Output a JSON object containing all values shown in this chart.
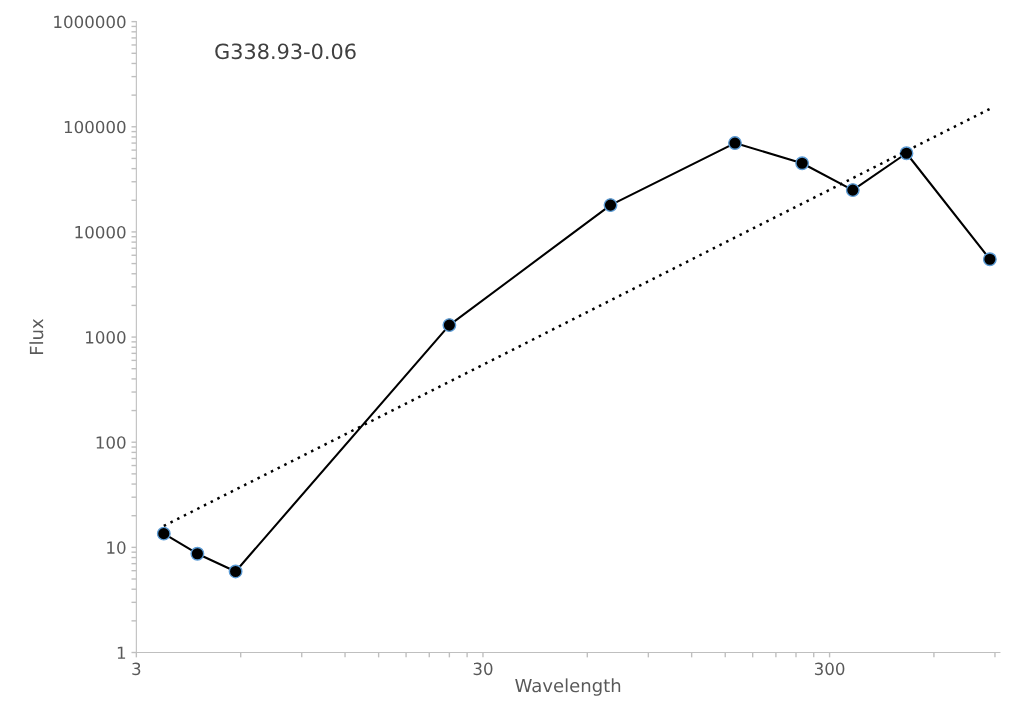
{
  "chart_data": {
    "type": "line",
    "title": "G338.93-0.06",
    "xlabel": "Wavelength",
    "ylabel": "Flux",
    "log": "xy",
    "x": [
      3.6,
      4.5,
      5.8,
      24,
      70,
      160,
      250,
      350,
      500,
      870
    ],
    "series": [
      {
        "color": "#000000",
        "marker": "circle",
        "line_style": "solid",
        "values": [
          13.5,
          8.7,
          5.9,
          1300,
          18000,
          70000,
          45000,
          25000,
          56000,
          5500
        ]
      },
      {
        "color": "#000000",
        "marker": "none",
        "line_style": "dotted",
        "x": [
          3.6,
          870
        ],
        "values": [
          16,
          148000
        ]
      }
    ],
    "xlim": [
      3,
      930
    ],
    "xticks": [
      3,
      {
        "value": 6,
        "label": null
      },
      {
        "value": 9,
        "label": null
      },
      {
        "value": 12,
        "label": null
      },
      {
        "value": 15,
        "label": null
      },
      {
        "value": 18,
        "label": null
      },
      {
        "value": 21,
        "label": null
      },
      {
        "value": 24,
        "label": null
      },
      {
        "value": 27,
        "label": null
      },
      30,
      {
        "value": 60,
        "label": null
      },
      {
        "value": 90,
        "label": null
      },
      {
        "value": 120,
        "label": null
      },
      {
        "value": 150,
        "label": null
      },
      {
        "value": 180,
        "label": null
      },
      {
        "value": 210,
        "label": null
      },
      {
        "value": 240,
        "label": null
      },
      {
        "value": 270,
        "label": null
      },
      300,
      {
        "value": 600,
        "label": null
      },
      {
        "value": 900,
        "label": null
      }
    ],
    "ylim": [
      1,
      1000000
    ],
    "yticks": [
      1,
      {
        "value": 2,
        "label": null
      },
      {
        "value": 3,
        "label": null
      },
      {
        "value": 4,
        "label": null
      },
      {
        "value": 5,
        "label": null
      },
      {
        "value": 6,
        "label": null
      },
      {
        "value": 7,
        "label": null
      },
      {
        "value": 8,
        "label": null
      },
      {
        "value": 9,
        "label": null
      },
      10,
      {
        "value": 20,
        "label": null
      },
      {
        "value": 30,
        "label": null
      },
      {
        "value": 40,
        "label": null
      },
      {
        "value": 50,
        "label": null
      },
      {
        "value": 60,
        "label": null
      },
      {
        "value": 70,
        "label": null
      },
      {
        "value": 80,
        "label": null
      },
      {
        "value": 90,
        "label": null
      },
      100,
      {
        "value": 200,
        "label": null
      },
      {
        "value": 300,
        "label": null
      },
      {
        "value": 400,
        "label": null
      },
      {
        "value": 500,
        "label": null
      },
      {
        "value": 600,
        "label": null
      },
      {
        "value": 700,
        "label": null
      },
      {
        "value": 800,
        "label": null
      },
      {
        "value": 900,
        "label": null
      },
      1000,
      {
        "value": 2000,
        "label": null
      },
      {
        "value": 3000,
        "label": null
      },
      {
        "value": 4000,
        "label": null
      },
      {
        "value": 5000,
        "label": null
      },
      {
        "value": 6000,
        "label": null
      },
      {
        "value": 7000,
        "label": null
      },
      {
        "value": 8000,
        "label": null
      },
      {
        "value": 9000,
        "label": null
      },
      10000,
      {
        "value": 20000,
        "label": null
      },
      {
        "value": 30000,
        "label": null
      },
      {
        "value": 40000,
        "label": null
      },
      {
        "value": 50000,
        "label": null
      },
      {
        "value": 60000,
        "label": null
      },
      {
        "value": 70000,
        "label": null
      },
      {
        "value": 80000,
        "label": null
      },
      {
        "value": 90000,
        "label": null
      },
      100000,
      {
        "value": 200000,
        "label": null
      },
      {
        "value": 300000,
        "label": null
      },
      {
        "value": 400000,
        "label": null
      },
      {
        "value": 500000,
        "label": null
      },
      {
        "value": 600000,
        "label": null
      },
      {
        "value": 700000,
        "label": null
      },
      {
        "value": 800000,
        "label": null
      },
      {
        "value": 900000,
        "label": null
      },
      1000000
    ],
    "grid": false
  }
}
